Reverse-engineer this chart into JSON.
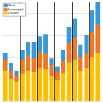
{
  "background": "#FFFFFF",
  "igrade_color": "#FFC000",
  "leveraged_color": "#F07820",
  "other_color": "#3A9AD9",
  "groups": [
    {
      "igrade": 5.5,
      "leveraged": 2.0,
      "other": 1.2
    },
    {
      "igrade": 4.0,
      "leveraged": 1.5,
      "other": 1.4
    },
    {
      "igrade": 3.5,
      "leveraged": 1.2,
      "other": 0.8
    },
    {
      "igrade": 5.0,
      "leveraged": 2.5,
      "other": 1.8
    },
    {
      "igrade": 5.5,
      "leveraged": 2.8,
      "other": 2.5
    },
    {
      "igrade": 5.2,
      "leveraged": 2.5,
      "other": 3.0
    },
    {
      "igrade": 6.0,
      "leveraged": 3.0,
      "other": 2.8
    },
    {
      "igrade": 5.8,
      "leveraged": 2.8,
      "other": 3.5
    },
    {
      "igrade": 4.5,
      "leveraged": 2.0,
      "other": 1.2
    },
    {
      "igrade": 3.8,
      "leveraged": 1.6,
      "other": 0.8
    },
    {
      "igrade": 5.0,
      "leveraged": 2.2,
      "other": 2.0
    },
    {
      "igrade": 7.0,
      "leveraged": 3.5,
      "other": 3.0
    },
    {
      "igrade": 7.5,
      "leveraged": 4.0,
      "other": 3.5
    },
    {
      "igrade": 5.5,
      "leveraged": 2.5,
      "other": 2.2
    },
    {
      "igrade": 6.0,
      "leveraged": 2.8,
      "other": 3.2
    },
    {
      "igrade": 8.0,
      "leveraged": 4.5,
      "other": 4.0
    },
    {
      "igrade": 8.8,
      "leveraged": 5.0,
      "other": 4.5
    }
  ],
  "dividers": [
    3,
    6,
    9,
    12,
    15
  ],
  "ylim": [
    0,
    18
  ],
  "grid_vals": [
    4,
    8,
    12,
    16
  ]
}
